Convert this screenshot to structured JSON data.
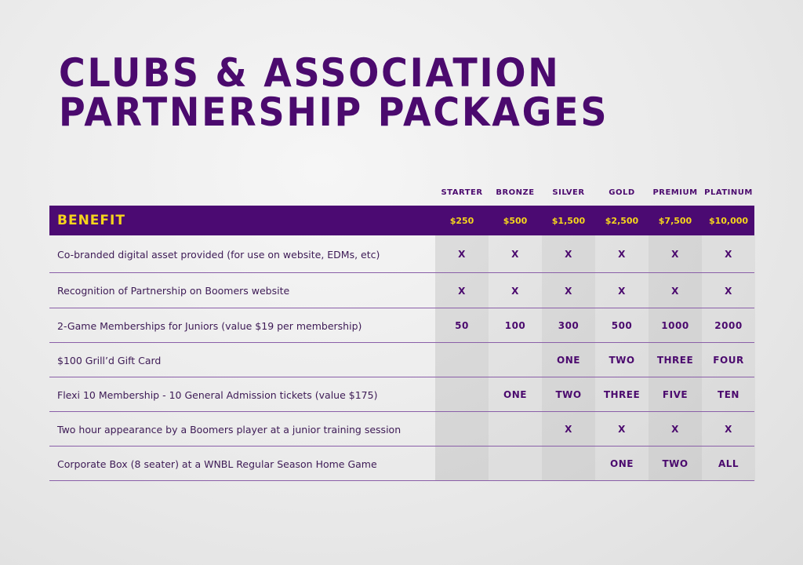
{
  "title": [
    "CLUBS & ASSOCIATION",
    "PARTNERSHIP PACKAGES"
  ],
  "table": {
    "tiers": [
      "STARTER",
      "BRONZE",
      "SILVER",
      "GOLD",
      "PREMIUM",
      "PLATINUM"
    ],
    "header": {
      "benefit": "BENEFIT",
      "prices": [
        "$250",
        "$500",
        "$1,500",
        "$2,500",
        "$7,500",
        "$10,000"
      ]
    },
    "rows": [
      {
        "benefit": "Co-branded digital asset provided (for use on website, EDMs, etc)",
        "cells": [
          "X",
          "X",
          "X",
          "X",
          "X",
          "X"
        ]
      },
      {
        "benefit": "Recognition of Partnership on Boomers website",
        "cells": [
          "X",
          "X",
          "X",
          "X",
          "X",
          "X"
        ]
      },
      {
        "benefit": "2-Game Memberships for Juniors (value $19 per membership)",
        "cells": [
          50,
          100,
          300,
          500,
          1000,
          2000
        ]
      },
      {
        "benefit": "$100 Grill’d Gift Card",
        "cells": [
          null,
          null,
          "ONE",
          "TWO",
          "THREE",
          "FOUR"
        ]
      },
      {
        "benefit": "Flexi 10 Membership - 10 General Admission tickets (value $175)",
        "cells": [
          null,
          "ONE",
          "TWO",
          "THREE",
          "FIVE",
          "TEN"
        ]
      },
      {
        "benefit": "Two hour appearance by a Boomers player at a junior training session",
        "cells": [
          null,
          null,
          "X",
          "X",
          "X",
          "X"
        ]
      },
      {
        "benefit": "Corporate Box (8 seater) at a WNBL Regular Season Home Game",
        "cells": [
          null,
          null,
          null,
          "ONE",
          "TWO",
          "ALL"
        ]
      }
    ]
  }
}
